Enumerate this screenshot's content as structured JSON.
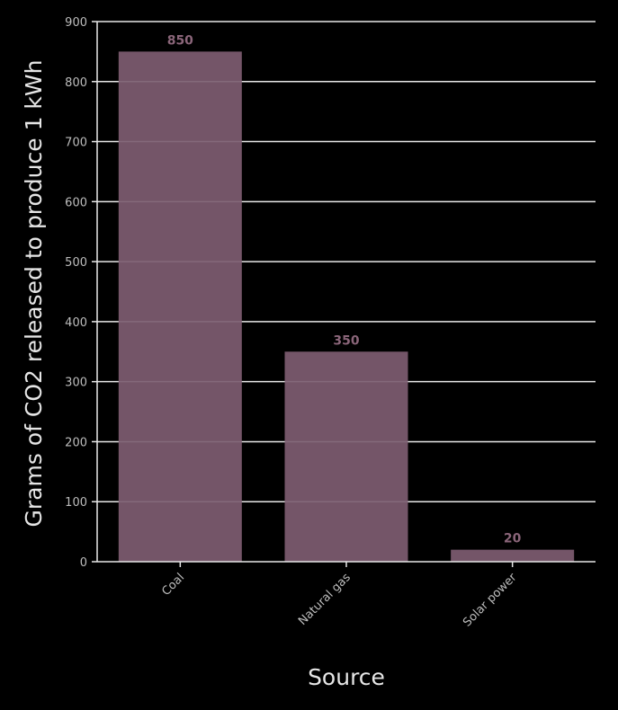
{
  "chart_data": {
    "type": "bar",
    "categories": [
      "Coal",
      "Natural gas",
      "Solar power"
    ],
    "values": [
      850,
      350,
      20
    ],
    "data_labels": [
      "850",
      "350",
      "20"
    ],
    "title": "",
    "xlabel": "Source",
    "ylabel": "Grams of CO2 released to produce 1 kWh",
    "ylim": [
      0,
      900
    ],
    "yticks": [
      0,
      100,
      200,
      300,
      400,
      500,
      600,
      700,
      800,
      900
    ],
    "grid": true,
    "legend": "none"
  },
  "colors": {
    "background": "#000000",
    "bar": "#745568",
    "data_label": "#8a6579",
    "grid": "#e8e8e8",
    "tick_text": "#bdbdbd",
    "title_text": "#e6e6e6"
  }
}
